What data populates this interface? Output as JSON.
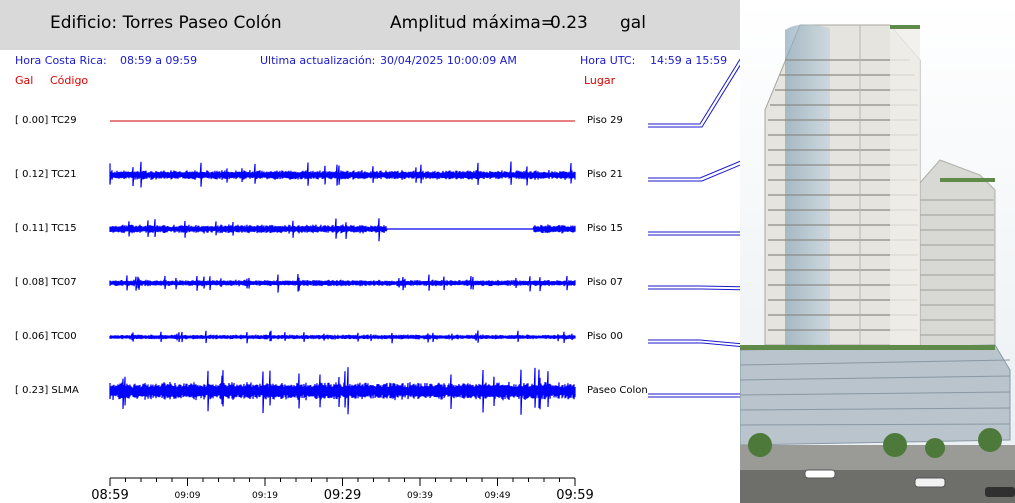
{
  "header": {
    "building": "Edificio: Torres Paseo Colón",
    "amp_label": "Amplitud máxima=",
    "amp_value": "0.23",
    "amp_unit": "gal"
  },
  "info": {
    "cr_label": "Hora Costa Rica:",
    "cr_range": "08:59 a 09:59",
    "update_label": "Ultima actualización:",
    "update_value": "30/04/2025 10:00:09 AM",
    "utc_label": "Hora UTC:",
    "utc_range": "14:59 a 15:59"
  },
  "columns": {
    "gal": "Gal",
    "code": "Código",
    "place": "Lugar"
  },
  "colors": {
    "trace": "#0000ff",
    "flat_trace": "#cc0000",
    "header_bg": "#d9d9d9",
    "info_text": "#1a1acc"
  },
  "chart_data": {
    "type": "line",
    "title": "",
    "x_ticks": [
      "08:59",
      "09:09",
      "09:19",
      "09:29",
      "09:39",
      "09:49",
      "09:59"
    ],
    "x_tick_major": [
      true,
      false,
      false,
      true,
      false,
      false,
      true
    ],
    "series": [
      {
        "gal": "[  0.00]",
        "code": "TC29",
        "place": "Piso 29",
        "amplitude": 0.0,
        "flat": true,
        "gap": null
      },
      {
        "gal": "[  0.12]",
        "code": "TC21",
        "place": "Piso 21",
        "amplitude": 0.12,
        "flat": false,
        "gap": null
      },
      {
        "gal": "[  0.11]",
        "code": "TC15",
        "place": "Piso 15",
        "amplitude": 0.11,
        "flat": false,
        "gap": [
          0.595,
          0.91
        ]
      },
      {
        "gal": "[  0.08]",
        "code": "TC07",
        "place": "Piso 07",
        "amplitude": 0.08,
        "flat": false,
        "gap": null
      },
      {
        "gal": "[  0.06]",
        "code": "TC00",
        "place": "Piso 00",
        "amplitude": 0.06,
        "flat": false,
        "gap": null
      },
      {
        "gal": "[  0.23]",
        "code": "SLMA",
        "place": "Paseo Colon",
        "amplitude": 0.23,
        "flat": false,
        "gap": null
      }
    ]
  },
  "building_image": {
    "icon": "building-photo-icon"
  }
}
